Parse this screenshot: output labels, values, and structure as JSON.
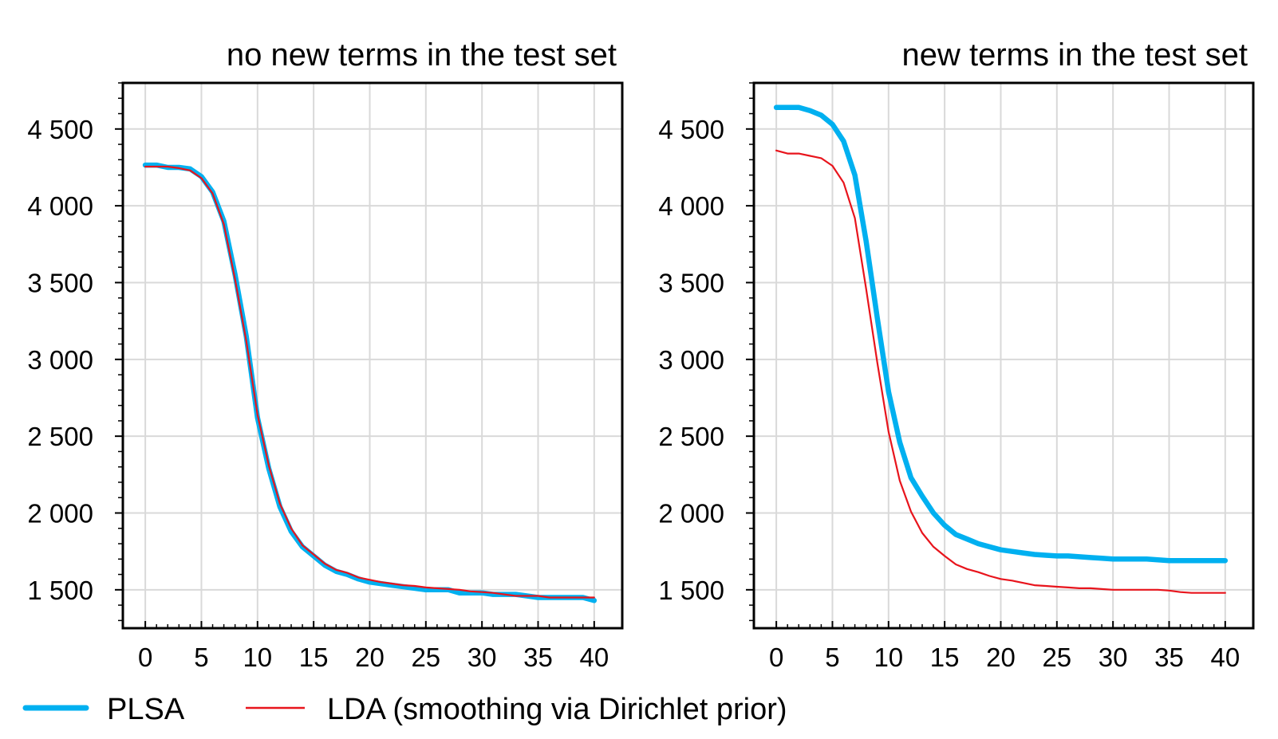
{
  "chart_data": [
    {
      "type": "line",
      "title": "no new terms in the test set",
      "xlabel": "",
      "ylabel": "",
      "xlim": [
        -2,
        42.5
      ],
      "ylim": [
        1250,
        4800
      ],
      "xticks": [
        0,
        5,
        10,
        15,
        20,
        25,
        30,
        35,
        40
      ],
      "xtick_labels": [
        "0",
        "5",
        "10",
        "15",
        "20",
        "25",
        "30",
        "35",
        "40"
      ],
      "yticks": [
        1500,
        2000,
        2500,
        3000,
        3500,
        4000,
        4500
      ],
      "ytick_labels": [
        "1 500",
        "2 000",
        "2 500",
        "3 000",
        "3 500",
        "4 000",
        "4 500"
      ],
      "grid": true,
      "series": [
        {
          "name": "PLSA",
          "color": "#00b0f0",
          "x": [
            0,
            1,
            2,
            3,
            4,
            5,
            6,
            7,
            8,
            9,
            10,
            11,
            12,
            13,
            14,
            15,
            16,
            17,
            18,
            19,
            20,
            21,
            22,
            23,
            24,
            25,
            26,
            27,
            28,
            29,
            30,
            31,
            32,
            33,
            34,
            35,
            36,
            37,
            38,
            39,
            40
          ],
          "values": [
            4265,
            4265,
            4250,
            4250,
            4240,
            4190,
            4090,
            3900,
            3550,
            3150,
            2620,
            2290,
            2040,
            1880,
            1780,
            1720,
            1660,
            1620,
            1600,
            1570,
            1550,
            1540,
            1530,
            1520,
            1510,
            1500,
            1500,
            1500,
            1480,
            1480,
            1480,
            1470,
            1470,
            1470,
            1460,
            1450,
            1450,
            1450,
            1450,
            1450,
            1430
          ]
        },
        {
          "name": "LDA (smoothing via Dirichlet prior)",
          "color": "#e8141c",
          "x": [
            0,
            1,
            2,
            3,
            4,
            5,
            6,
            7,
            8,
            9,
            10,
            11,
            12,
            13,
            14,
            15,
            16,
            17,
            18,
            19,
            20,
            21,
            22,
            23,
            24,
            25,
            26,
            27,
            28,
            29,
            30,
            31,
            32,
            33,
            34,
            35,
            36,
            37,
            38,
            39,
            40
          ],
          "values": [
            4255,
            4255,
            4255,
            4245,
            4230,
            4180,
            4080,
            3880,
            3520,
            3120,
            2640,
            2310,
            2060,
            1900,
            1790,
            1730,
            1670,
            1630,
            1610,
            1580,
            1565,
            1550,
            1540,
            1530,
            1525,
            1515,
            1510,
            1505,
            1500,
            1490,
            1485,
            1480,
            1470,
            1460,
            1460,
            1460,
            1450,
            1450,
            1450,
            1450,
            1450
          ]
        }
      ]
    },
    {
      "type": "line",
      "title": "new terms in the test set",
      "xlabel": "",
      "ylabel": "",
      "xlim": [
        -2,
        42.5
      ],
      "ylim": [
        1250,
        4800
      ],
      "xticks": [
        0,
        5,
        10,
        15,
        20,
        25,
        30,
        35,
        40
      ],
      "xtick_labels": [
        "0",
        "5",
        "10",
        "15",
        "20",
        "25",
        "30",
        "35",
        "40"
      ],
      "yticks": [
        1500,
        2000,
        2500,
        3000,
        3500,
        4000,
        4500
      ],
      "ytick_labels": [
        "1 500",
        "2 000",
        "2 500",
        "3 000",
        "3 500",
        "4 000",
        "4 500"
      ],
      "grid": true,
      "series": [
        {
          "name": "PLSA",
          "color": "#00b0f0",
          "x": [
            0,
            1,
            2,
            3,
            4,
            5,
            6,
            7,
            8,
            9,
            10,
            11,
            12,
            13,
            14,
            15,
            16,
            17,
            18,
            19,
            20,
            21,
            22,
            23,
            24,
            25,
            26,
            27,
            28,
            29,
            30,
            31,
            32,
            33,
            34,
            35,
            36,
            37,
            38,
            39,
            40
          ],
          "values": [
            4640,
            4640,
            4640,
            4620,
            4590,
            4530,
            4420,
            4200,
            3770,
            3270,
            2790,
            2460,
            2230,
            2110,
            2000,
            1920,
            1860,
            1830,
            1800,
            1780,
            1760,
            1750,
            1740,
            1730,
            1725,
            1720,
            1720,
            1715,
            1710,
            1705,
            1700,
            1700,
            1700,
            1700,
            1695,
            1690,
            1690,
            1690,
            1690,
            1690,
            1690
          ]
        },
        {
          "name": "LDA (smoothing via Dirichlet prior)",
          "color": "#e8141c",
          "x": [
            0,
            1,
            2,
            3,
            4,
            5,
            6,
            7,
            8,
            9,
            10,
            11,
            12,
            13,
            14,
            15,
            16,
            17,
            18,
            19,
            20,
            21,
            22,
            23,
            24,
            25,
            26,
            27,
            28,
            29,
            30,
            31,
            32,
            33,
            34,
            35,
            36,
            37,
            38,
            39,
            40
          ],
          "values": [
            4360,
            4340,
            4340,
            4325,
            4310,
            4260,
            4150,
            3920,
            3460,
            2980,
            2530,
            2210,
            2010,
            1870,
            1780,
            1720,
            1665,
            1635,
            1615,
            1590,
            1570,
            1560,
            1545,
            1530,
            1525,
            1520,
            1515,
            1510,
            1510,
            1505,
            1500,
            1500,
            1500,
            1500,
            1500,
            1495,
            1485,
            1480,
            1480,
            1480,
            1480
          ]
        }
      ]
    }
  ],
  "legend": {
    "placement": "bottom",
    "entries": [
      {
        "label": "PLSA",
        "color": "#00b0f0"
      },
      {
        "label": "LDA (smoothing via Dirichlet prior)",
        "color": "#e8141c"
      }
    ]
  }
}
